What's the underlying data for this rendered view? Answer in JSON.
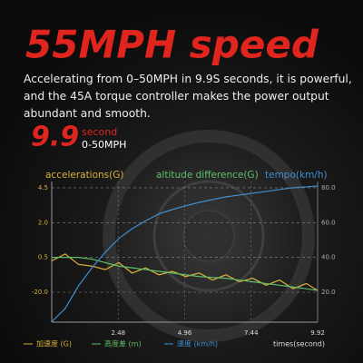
{
  "header": {
    "title": "55MPH speed",
    "description": "Accelerating from 0–50MPH in 9.9S seconds, it is powerful, and the 45A torque controller makes the power output abundant and smooth."
  },
  "badge": {
    "value": "9.9",
    "unit": "second",
    "range": "0-50MPH"
  },
  "chart_data": {
    "type": "line",
    "x": [
      0,
      0.5,
      1,
      1.5,
      2,
      2.5,
      3,
      3.5,
      4,
      4.5,
      5,
      5.5,
      6,
      6.5,
      7,
      7.5,
      8,
      8.5,
      9,
      9.5,
      9.92
    ],
    "series": [
      {
        "name": "accelerations(G)",
        "label_cn": "加速度 (G)",
        "color": "#d9b23a",
        "axis": "y2",
        "values": [
          38,
          42,
          36,
          35,
          33,
          37,
          31,
          34,
          30,
          32,
          29,
          31,
          27,
          30,
          26,
          28,
          24,
          27,
          22,
          25,
          21
        ]
      },
      {
        "name": "altitude difference(G)",
        "label_cn": "高度差 (m)",
        "color": "#5fbf6a",
        "axis": "y2",
        "values": [
          40,
          40,
          40,
          39,
          37,
          35,
          34,
          33,
          32,
          31,
          30,
          29,
          28.5,
          28,
          27,
          26,
          25,
          24,
          23,
          22,
          21
        ]
      },
      {
        "name": "tempo(km/h)",
        "label_cn": "速度 (km/h)",
        "color": "#3f8fd0",
        "axis": "y2",
        "values": [
          3,
          10.6,
          23.7,
          34,
          43,
          50.8,
          56.5,
          61,
          65,
          67.5,
          69.6,
          71.6,
          73.2,
          74.8,
          75.8,
          76.9,
          77.9,
          79,
          80,
          80.5,
          81
        ]
      }
    ],
    "xlabel": "times(second)",
    "xlim": [
      0,
      9.92
    ],
    "xticks": [
      2.48,
      4.96,
      7.44,
      9.92
    ],
    "y2lim": [
      2.8,
      83.6
    ],
    "y2ticks": [
      {
        "value": 80,
        "label": "80.0"
      },
      {
        "value": 60,
        "label": "60.0"
      },
      {
        "value": 40,
        "label": "40.0"
      },
      {
        "value": 20,
        "label": "20.0"
      }
    ],
    "left_tick_labels": [
      "4.5",
      "2.0",
      "0.5",
      "-20.0"
    ],
    "grid": true
  }
}
